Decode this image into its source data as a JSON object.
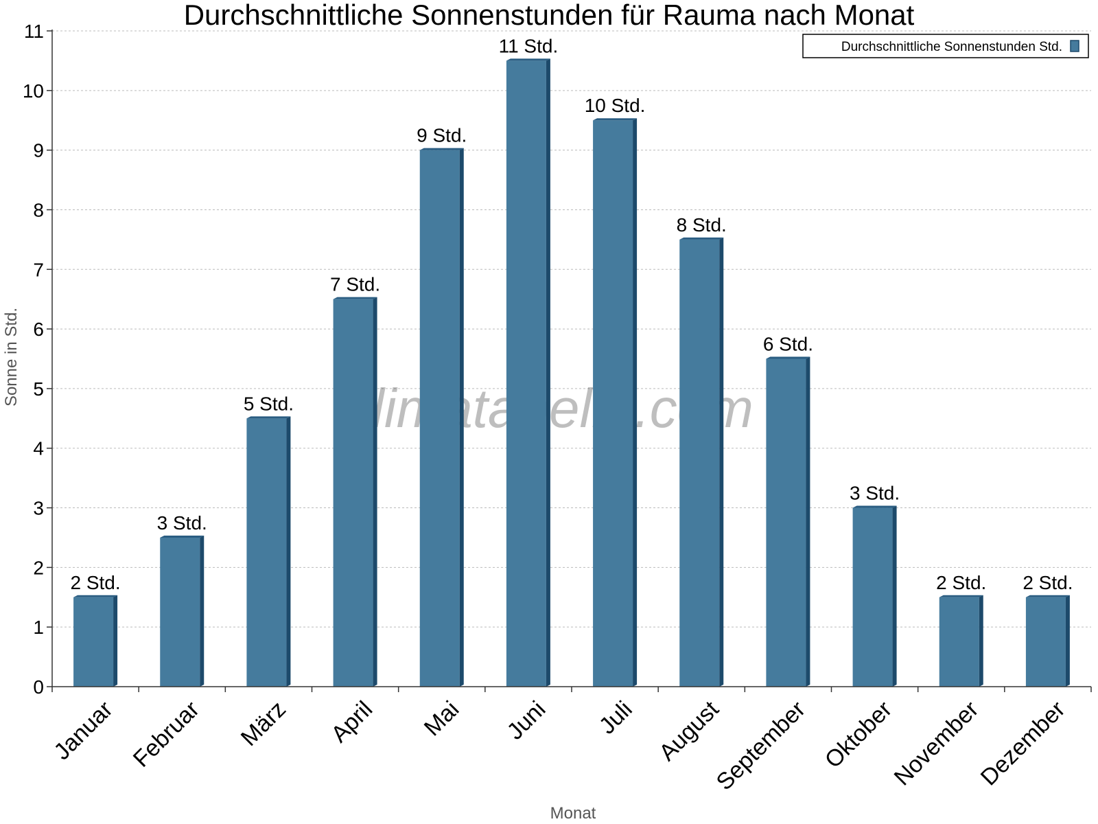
{
  "colors": {
    "bar_front": "#457b9d",
    "bar_side": "#1d4a6b",
    "bar_top": "#2a5d82",
    "grid": "#bbbbbb",
    "axis": "#333333"
  },
  "watermark": "klimatabelle.com",
  "chart_data": {
    "type": "bar",
    "title": "Durchschnittliche Sonnenstunden für Rauma nach Monat",
    "xlabel": "Monat",
    "ylabel": "Sonne in Std.",
    "ylim": [
      0,
      11
    ],
    "yticks": [
      "0",
      "1",
      "2",
      "3",
      "4",
      "5",
      "6",
      "7",
      "8",
      "9",
      "10",
      "11"
    ],
    "grid": true,
    "legend_position": "top-right",
    "categories": [
      "Januar",
      "Februar",
      "März",
      "April",
      "Mai",
      "Juni",
      "Juli",
      "August",
      "September",
      "Oktober",
      "November",
      "Dezember"
    ],
    "series": [
      {
        "name": "Durchschnittliche Sonnenstunden Std.",
        "values": [
          1.5,
          2.5,
          4.5,
          6.5,
          9,
          10.5,
          9.5,
          7.5,
          5.5,
          3,
          1.5,
          1.5
        ],
        "labels": [
          "2 Std.",
          "3 Std.",
          "5 Std.",
          "7 Std.",
          "9 Std.",
          "11 Std.",
          "10 Std.",
          "8 Std.",
          "6 Std.",
          "3 Std.",
          "2 Std.",
          "2 Std."
        ]
      }
    ]
  }
}
